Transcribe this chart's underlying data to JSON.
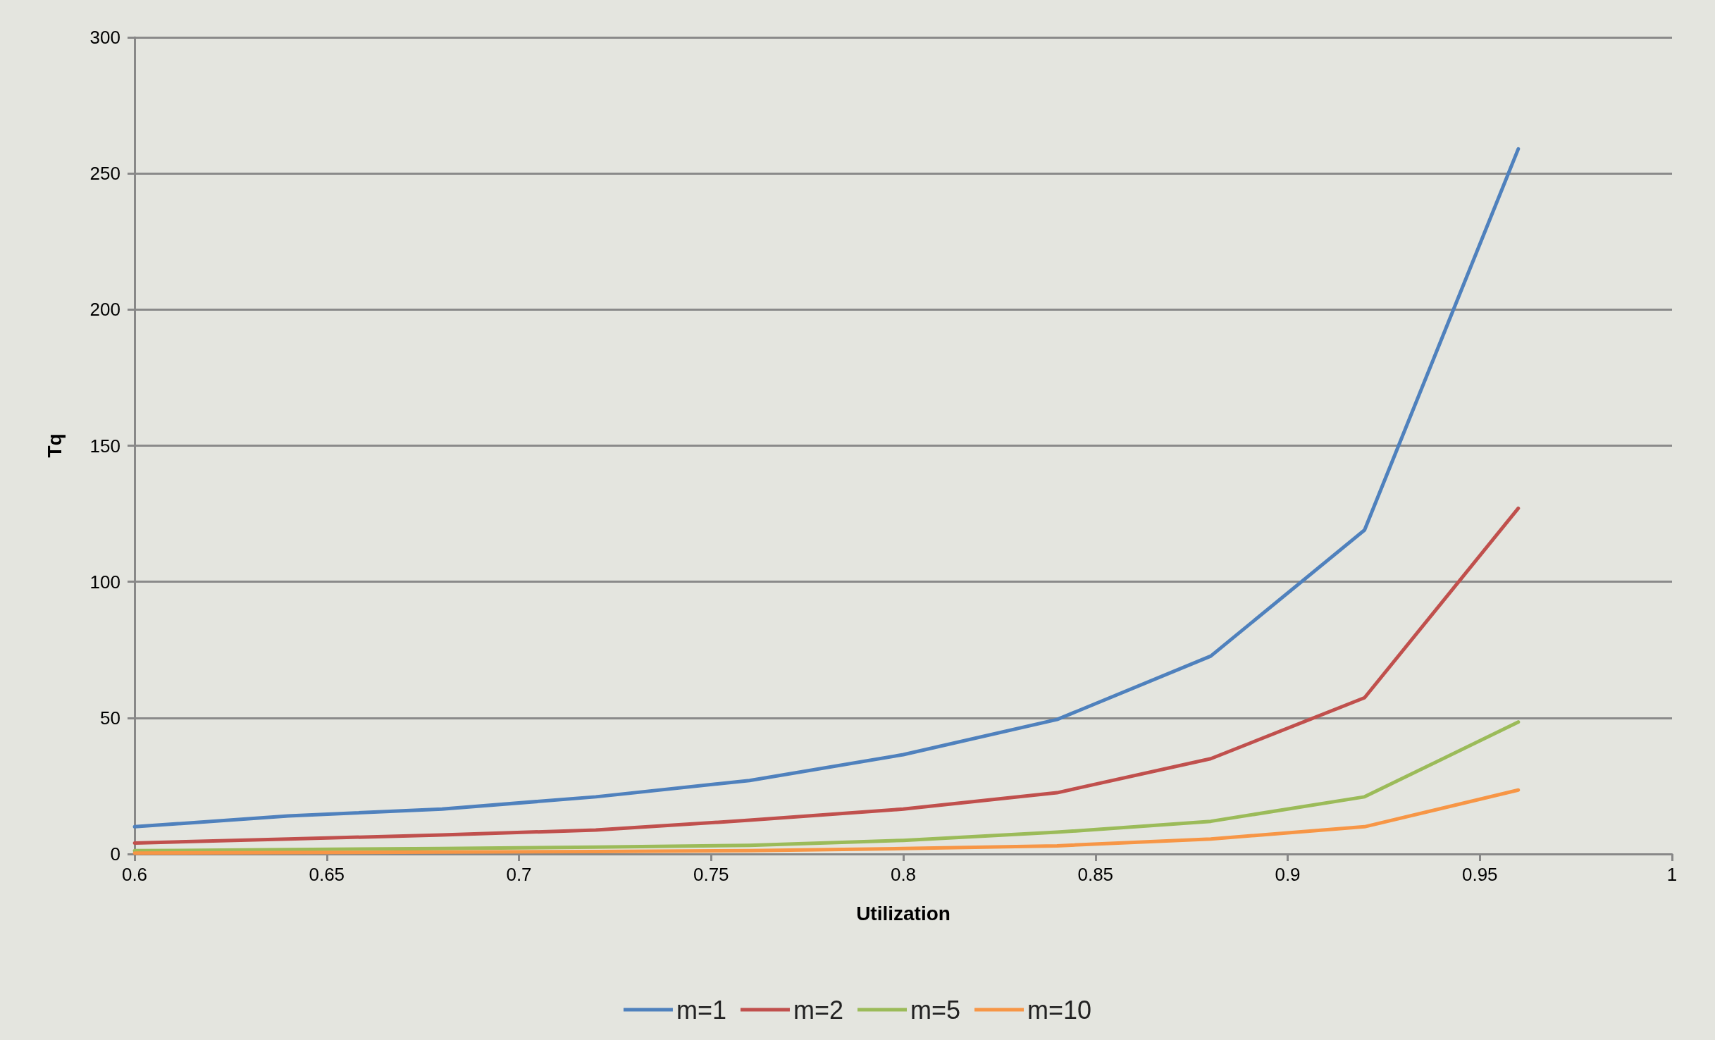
{
  "chart_data": {
    "type": "line",
    "xlabel": "Utilization",
    "ylabel": "Tq",
    "x": [
      0.6,
      0.64,
      0.68,
      0.72,
      0.76,
      0.8,
      0.84,
      0.88,
      0.92,
      0.96
    ],
    "series": [
      {
        "name": "m=1",
        "color": "#4f81bd",
        "values": [
          10,
          14,
          16.5,
          21,
          27,
          36.5,
          49.4,
          72.7,
          119,
          259
        ]
      },
      {
        "name": "m=2",
        "color": "#c0504d",
        "values": [
          4,
          5.5,
          7,
          8.8,
          12.4,
          16.5,
          22.5,
          35,
          57.4,
          127
        ]
      },
      {
        "name": "m=5",
        "color": "#9bbb59",
        "values": [
          1.2,
          1.6,
          2,
          2.5,
          3.2,
          5,
          8,
          12,
          21,
          48.5
        ]
      },
      {
        "name": "m=10",
        "color": "#f79646",
        "values": [
          0.3,
          0.5,
          0.7,
          0.9,
          1.2,
          2,
          3,
          5.5,
          10,
          23.5
        ]
      }
    ],
    "xlim": [
      0.6,
      1
    ],
    "xticks": [
      0.6,
      0.65,
      0.7,
      0.75,
      0.8,
      0.85,
      0.9,
      0.95,
      1
    ],
    "ylim": [
      0,
      300
    ],
    "yticks": [
      0,
      50,
      100,
      150,
      200,
      250,
      300
    ],
    "grid": "y",
    "legend": "bottom",
    "marker": "none",
    "line_style": "solid"
  }
}
